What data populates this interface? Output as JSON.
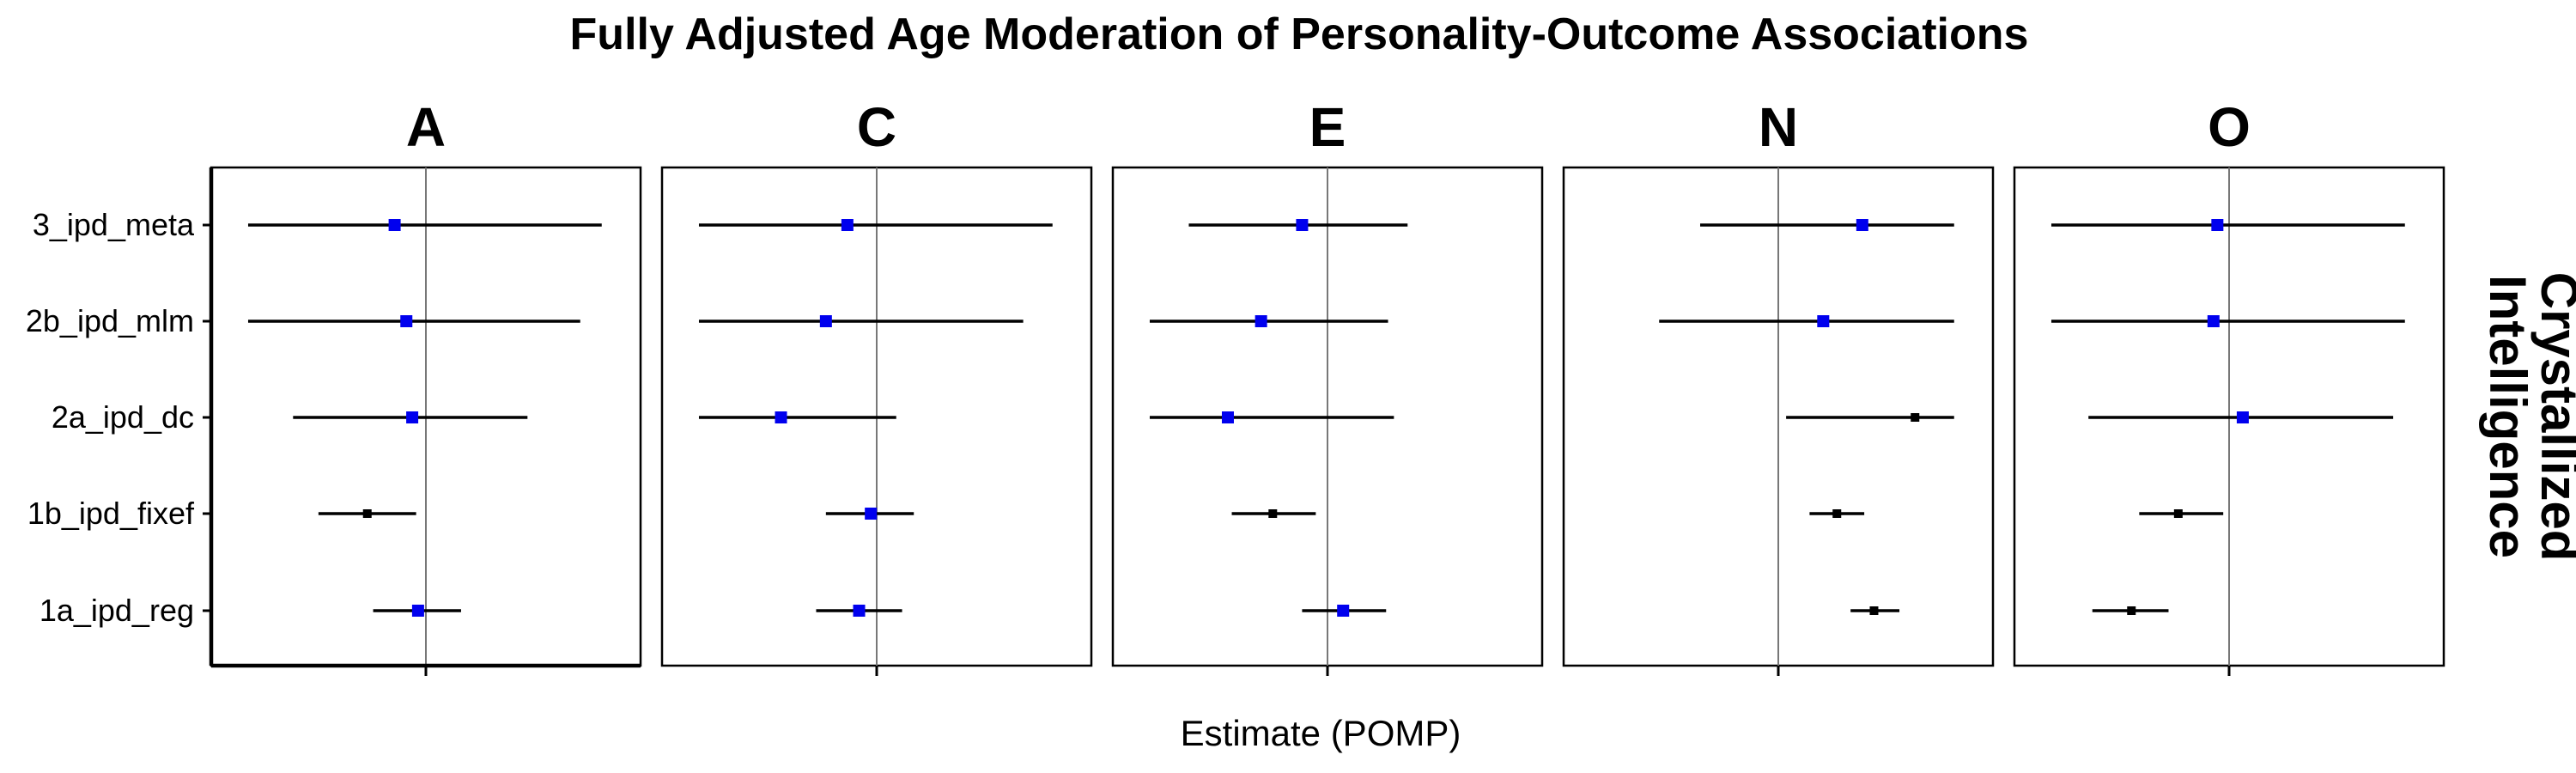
{
  "chart_data": {
    "type": "forest",
    "title": "Fully Adjusted Age Moderation of Personality-Outcome Associations",
    "xlabel": "Estimate (POMP)",
    "ylabel": "",
    "row_strip": "Crystallized\nIntelligence",
    "methods": [
      "3_ipd_meta",
      "2b_ipd_mlm",
      "2a_ipd_dc",
      "1b_ipd_fixef",
      "1a_ipd_reg"
    ],
    "xlim": [
      -1.0,
      1.0
    ],
    "reference_line": 0,
    "grid": false,
    "colors": {
      "blue": "#0000ee",
      "black": "#000000"
    },
    "panels": [
      {
        "trait": "A",
        "rows": [
          {
            "method": "3_ipd_meta",
            "estimate": -0.16,
            "lower": -0.91,
            "upper": 0.9,
            "color": "blue"
          },
          {
            "method": "2b_ipd_mlm",
            "estimate": -0.1,
            "lower": -0.91,
            "upper": 0.79,
            "color": "blue"
          },
          {
            "method": "2a_ipd_dc",
            "estimate": -0.07,
            "lower": -0.68,
            "upper": 0.52,
            "color": "blue"
          },
          {
            "method": "1b_ipd_fixef",
            "estimate": -0.3,
            "lower": -0.55,
            "upper": -0.05,
            "color": "black"
          },
          {
            "method": "1a_ipd_reg",
            "estimate": -0.04,
            "lower": -0.27,
            "upper": 0.18,
            "color": "blue"
          }
        ]
      },
      {
        "trait": "C",
        "rows": [
          {
            "method": "3_ipd_meta",
            "estimate": -0.15,
            "lower": -0.91,
            "upper": 0.9,
            "color": "blue"
          },
          {
            "method": "2b_ipd_mlm",
            "estimate": -0.26,
            "lower": -0.91,
            "upper": 0.75,
            "color": "blue"
          },
          {
            "method": "2a_ipd_dc",
            "estimate": -0.49,
            "lower": -0.91,
            "upper": 0.1,
            "color": "blue"
          },
          {
            "method": "1b_ipd_fixef",
            "estimate": -0.03,
            "lower": -0.26,
            "upper": 0.19,
            "color": "blue"
          },
          {
            "method": "1a_ipd_reg",
            "estimate": -0.09,
            "lower": -0.31,
            "upper": 0.13,
            "color": "blue"
          }
        ]
      },
      {
        "trait": "E",
        "rows": [
          {
            "method": "3_ipd_meta",
            "estimate": -0.13,
            "lower": -0.71,
            "upper": 0.41,
            "color": "blue"
          },
          {
            "method": "2b_ipd_mlm",
            "estimate": -0.34,
            "lower": -0.91,
            "upper": 0.31,
            "color": "blue"
          },
          {
            "method": "2a_ipd_dc",
            "estimate": -0.51,
            "lower": -0.91,
            "upper": 0.34,
            "color": "blue"
          },
          {
            "method": "1b_ipd_fixef",
            "estimate": -0.28,
            "lower": -0.49,
            "upper": -0.06,
            "color": "black"
          },
          {
            "method": "1a_ipd_reg",
            "estimate": 0.08,
            "lower": -0.13,
            "upper": 0.3,
            "color": "blue"
          }
        ]
      },
      {
        "trait": "N",
        "rows": [
          {
            "method": "3_ipd_meta",
            "estimate": 0.43,
            "lower": -0.4,
            "upper": 0.9,
            "color": "blue"
          },
          {
            "method": "2b_ipd_mlm",
            "estimate": 0.23,
            "lower": -0.61,
            "upper": 0.9,
            "color": "blue"
          },
          {
            "method": "2a_ipd_dc",
            "estimate": 0.7,
            "lower": 0.04,
            "upper": 0.9,
            "color": "black"
          },
          {
            "method": "1b_ipd_fixef",
            "estimate": 0.3,
            "lower": 0.16,
            "upper": 0.44,
            "color": "black"
          },
          {
            "method": "1a_ipd_reg",
            "estimate": 0.49,
            "lower": 0.37,
            "upper": 0.62,
            "color": "black"
          }
        ]
      },
      {
        "trait": "O",
        "rows": [
          {
            "method": "3_ipd_meta",
            "estimate": -0.06,
            "lower": -0.91,
            "upper": 0.9,
            "color": "blue"
          },
          {
            "method": "2b_ipd_mlm",
            "estimate": -0.08,
            "lower": -0.91,
            "upper": 0.9,
            "color": "blue"
          },
          {
            "method": "2a_ipd_dc",
            "estimate": 0.07,
            "lower": -0.72,
            "upper": 0.84,
            "color": "blue"
          },
          {
            "method": "1b_ipd_fixef",
            "estimate": -0.26,
            "lower": -0.46,
            "upper": -0.03,
            "color": "black"
          },
          {
            "method": "1a_ipd_reg",
            "estimate": -0.5,
            "lower": -0.7,
            "upper": -0.31,
            "color": "black"
          }
        ]
      }
    ]
  }
}
